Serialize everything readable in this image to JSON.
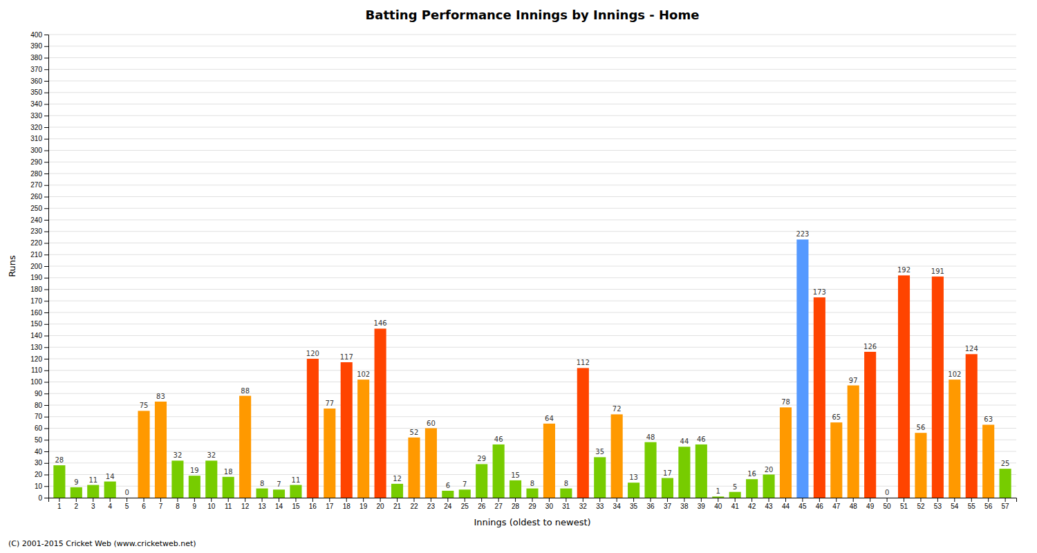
{
  "chart_data": {
    "type": "bar",
    "title": "Batting Performance Innings by Innings - Home",
    "xlabel": "Innings (oldest to newest)",
    "ylabel": "Runs",
    "annotations": [
      "(C) 2001-2015 Cricket Web (www.cricketweb.net)"
    ],
    "categories": [
      "1",
      "2",
      "3",
      "4",
      "5",
      "6",
      "7",
      "8",
      "9",
      "10",
      "11",
      "12",
      "13",
      "14",
      "15",
      "16",
      "17",
      "18",
      "19",
      "20",
      "21",
      "22",
      "23",
      "24",
      "25",
      "26",
      "27",
      "28",
      "29",
      "30",
      "31",
      "32",
      "33",
      "34",
      "35",
      "36",
      "37",
      "38",
      "39",
      "40",
      "41",
      "42",
      "43",
      "44",
      "45",
      "46",
      "47",
      "48",
      "49",
      "50",
      "51",
      "52",
      "53",
      "54",
      "55",
      "56",
      "57"
    ],
    "values": [
      28,
      9,
      11,
      14,
      0,
      75,
      83,
      32,
      19,
      32,
      18,
      88,
      8,
      7,
      11,
      120,
      77,
      117,
      102,
      146,
      12,
      52,
      60,
      6,
      7,
      29,
      46,
      15,
      8,
      64,
      8,
      112,
      35,
      72,
      13,
      48,
      17,
      44,
      46,
      1,
      5,
      16,
      20,
      78,
      223,
      173,
      65,
      97,
      126,
      0,
      192,
      56,
      191,
      102,
      124,
      63,
      25
    ],
    "colors": [
      "#77cc00",
      "#77cc00",
      "#77cc00",
      "#77cc00",
      "#ff4400",
      "#ff9900",
      "#ff9900",
      "#77cc00",
      "#77cc00",
      "#77cc00",
      "#77cc00",
      "#ff9900",
      "#77cc00",
      "#77cc00",
      "#77cc00",
      "#ff4400",
      "#ff9900",
      "#ff4400",
      "#ff9900",
      "#ff4400",
      "#77cc00",
      "#ff9900",
      "#ff9900",
      "#77cc00",
      "#77cc00",
      "#77cc00",
      "#77cc00",
      "#77cc00",
      "#77cc00",
      "#ff9900",
      "#77cc00",
      "#ff4400",
      "#77cc00",
      "#ff9900",
      "#77cc00",
      "#77cc00",
      "#77cc00",
      "#77cc00",
      "#77cc00",
      "#77cc00",
      "#77cc00",
      "#77cc00",
      "#77cc00",
      "#ff9900",
      "#5599ff",
      "#ff4400",
      "#ff9900",
      "#ff9900",
      "#ff4400",
      "#77cc00",
      "#ff4400",
      "#ff9900",
      "#ff4400",
      "#ff9900",
      "#ff4400",
      "#ff9900",
      "#77cc00"
    ],
    "ylim": [
      0,
      400
    ],
    "yticks": [
      0,
      10,
      20,
      30,
      40,
      50,
      60,
      70,
      80,
      90,
      100,
      110,
      120,
      130,
      140,
      150,
      160,
      170,
      180,
      190,
      200,
      210,
      220,
      230,
      240,
      250,
      260,
      270,
      280,
      290,
      300,
      310,
      320,
      330,
      340,
      350,
      360,
      370,
      380,
      390,
      400
    ],
    "grid": true,
    "data_labels": true
  }
}
